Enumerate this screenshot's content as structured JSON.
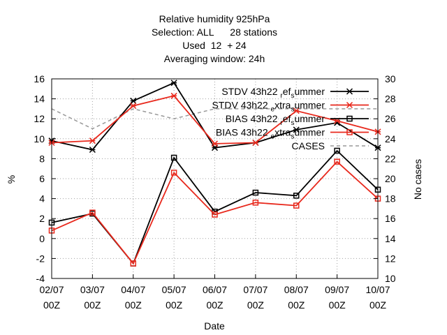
{
  "chart_data": {
    "type": "line",
    "title_lines": [
      "Relative humidity 925hPa",
      "Selection: ALL      28 stations",
      "Used  12  + 24",
      "Averaging window: 24h"
    ],
    "xlabel": "Date",
    "ylabel": "%",
    "y2label": "No cases",
    "categories": [
      "02/07 00Z",
      "03/07 00Z",
      "04/07 00Z",
      "05/07 00Z",
      "06/07 00Z",
      "07/07 00Z",
      "08/07 00Z",
      "09/07 00Z",
      "10/07 00Z"
    ],
    "x_tick_labels": [
      [
        "02/07",
        "00Z"
      ],
      [
        "03/07",
        "00Z"
      ],
      [
        "04/07",
        "00Z"
      ],
      [
        "05/07",
        "00Z"
      ],
      [
        "06/07",
        "00Z"
      ],
      [
        "07/07",
        "00Z"
      ],
      [
        "08/07",
        "00Z"
      ],
      [
        "09/07",
        "00Z"
      ],
      [
        "10/07",
        "00Z"
      ]
    ],
    "ylim": [
      -4,
      16
    ],
    "yticks": [
      -4,
      -2,
      0,
      2,
      4,
      6,
      8,
      10,
      12,
      14,
      16
    ],
    "y2lim": [
      10,
      30
    ],
    "y2ticks": [
      10,
      12,
      14,
      16,
      18,
      20,
      22,
      24,
      26,
      28,
      30
    ],
    "grid": true,
    "legend_position": "top-right",
    "series": [
      {
        "name": "STDV 43h22 ref summer",
        "legend_main": "STDV 43h22",
        "legend_sub1": "r",
        "legend_mid": "ef",
        "legend_sub2": "s",
        "legend_tail": "ummer",
        "axis": "y",
        "color": "#000000",
        "marker": "star",
        "values": [
          9.8,
          8.9,
          13.8,
          15.6,
          9.1,
          9.6,
          10.9,
          11.6,
          9.1
        ]
      },
      {
        "name": "STDV 43h22 extra summer",
        "legend_main": "STDV 43h22",
        "legend_sub1": "e",
        "legend_mid": "xtra",
        "legend_sub2": "s",
        "legend_tail": "ummer",
        "axis": "y",
        "color": "#e8281c",
        "marker": "star",
        "values": [
          9.6,
          9.8,
          13.3,
          14.3,
          9.5,
          9.6,
          12.8,
          11.8,
          10.7
        ]
      },
      {
        "name": "BIAS 43h22 ref summer",
        "legend_main": "BIAS 43h22",
        "legend_sub1": "r",
        "legend_mid": "ef",
        "legend_sub2": "s",
        "legend_tail": "ummer",
        "axis": "y",
        "color": "#000000",
        "marker": "square",
        "values": [
          1.6,
          2.5,
          -2.5,
          8.1,
          2.7,
          4.6,
          4.3,
          8.8,
          4.9
        ]
      },
      {
        "name": "BIAS 43h22 extra summer",
        "legend_main": "BIAS 43h22",
        "legend_sub1": "e",
        "legend_mid": "xtra",
        "legend_sub2": "s",
        "legend_tail": "ummer",
        "axis": "y",
        "color": "#e8281c",
        "marker": "square",
        "values": [
          0.8,
          2.6,
          -2.5,
          6.6,
          2.4,
          3.6,
          3.3,
          7.7,
          4.0
        ]
      },
      {
        "name": "CASES",
        "legend_main": "CASES",
        "axis": "y2",
        "color": "#999999",
        "dashed": true,
        "marker": "none",
        "values": [
          27,
          25,
          27,
          26,
          27,
          27,
          27,
          27,
          27
        ]
      }
    ]
  }
}
